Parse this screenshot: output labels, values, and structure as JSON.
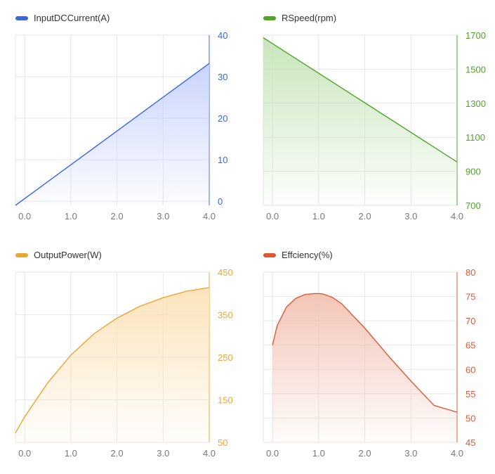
{
  "charts": [
    {
      "id": "input-dc-current",
      "legend": "InputDCCurrent(A)",
      "color": "#3b66e0",
      "fill_top": "#c7d2fb",
      "chart_data": {
        "type": "area",
        "series": [
          {
            "name": "InputDCCurrent(A)",
            "x": [
              -0.2,
              4.0
            ],
            "y": [
              -1,
              33.2
            ]
          }
        ],
        "xlim": [
          -0.2,
          4.0
        ],
        "x_ticks": [
          0.0,
          1.0,
          2.0,
          3.0,
          4.0
        ],
        "x_tick_labels": [
          "0.0",
          "1.0",
          "2.0",
          "3.0",
          "4.0"
        ],
        "ylim": [
          -1,
          40
        ],
        "y_ticks": [
          0,
          10,
          20,
          30,
          40
        ],
        "y_tick_labels": [
          "0",
          "10",
          "20",
          "30",
          "40"
        ],
        "y_axis_side": "right",
        "grid": true
      }
    },
    {
      "id": "rspeed",
      "legend": "RSpeed(rpm)",
      "color": "#52a329",
      "fill_top": "#c5e4b8",
      "chart_data": {
        "type": "area",
        "series": [
          {
            "name": "RSpeed(rpm)",
            "x": [
              -0.2,
              4.0
            ],
            "y": [
              1685,
              955
            ]
          }
        ],
        "xlim": [
          -0.2,
          4.0
        ],
        "x_ticks": [
          0.0,
          1.0,
          2.0,
          3.0,
          4.0
        ],
        "x_tick_labels": [
          "0.0",
          "1.0",
          "2.0",
          "3.0",
          "4.0"
        ],
        "ylim": [
          700,
          1700
        ],
        "y_ticks": [
          700,
          900,
          1100,
          1300,
          1500,
          1700
        ],
        "y_tick_labels": [
          "700",
          "900",
          "1100",
          "1300",
          "1500",
          "1700"
        ],
        "y_axis_side": "right",
        "grid": true
      }
    },
    {
      "id": "output-power",
      "legend": "OutputPower(W)",
      "color": "#eda533",
      "fill_top": "#fbe2b8",
      "chart_data": {
        "type": "area",
        "series": [
          {
            "name": "OutputPower(W)",
            "x": [
              -0.2,
              0.0,
              0.5,
              1.0,
              1.5,
              2.0,
              2.5,
              3.0,
              3.5,
              4.0
            ],
            "y": [
              72,
              110,
              190,
              255,
              305,
              342,
              370,
              390,
              405,
              414
            ]
          }
        ],
        "xlim": [
          -0.2,
          4.0
        ],
        "x_ticks": [
          0.0,
          1.0,
          2.0,
          3.0,
          4.0
        ],
        "x_tick_labels": [
          "0.0",
          "1.0",
          "2.0",
          "3.0",
          "4.0"
        ],
        "ylim": [
          50,
          450
        ],
        "y_ticks": [
          50,
          150,
          250,
          350,
          450
        ],
        "y_tick_labels": [
          "50",
          "150",
          "250",
          "350",
          "450"
        ],
        "y_axis_side": "right",
        "grid": true
      }
    },
    {
      "id": "efficiency",
      "legend": "Effciency(%)",
      "color": "#dc5a33",
      "fill_top": "#f2c2b4",
      "chart_data": {
        "type": "area",
        "series": [
          {
            "name": "Effciency(%)",
            "x": [
              0.0,
              0.1,
              0.3,
              0.5,
              0.7,
              0.9,
              1.0,
              1.1,
              1.3,
              1.5,
              2.0,
              2.5,
              3.0,
              3.5,
              4.0
            ],
            "y": [
              65.0,
              69.0,
              72.8,
              74.6,
              75.4,
              75.6,
              75.6,
              75.5,
              74.8,
              73.5,
              68.5,
              62.9,
              57.6,
              52.6,
              51.2
            ]
          }
        ],
        "xlim": [
          -0.2,
          4.0
        ],
        "x_ticks": [
          0.0,
          1.0,
          2.0,
          3.0,
          4.0
        ],
        "x_tick_labels": [
          "0.0",
          "1.0",
          "2.0",
          "3.0",
          "4.0"
        ],
        "ylim": [
          45,
          80
        ],
        "y_ticks": [
          45,
          50,
          55,
          60,
          65,
          70,
          75,
          80
        ],
        "y_tick_labels": [
          "45",
          "50",
          "55",
          "60",
          "65",
          "70",
          "75",
          "80"
        ],
        "y_axis_side": "right",
        "grid": true
      }
    }
  ]
}
